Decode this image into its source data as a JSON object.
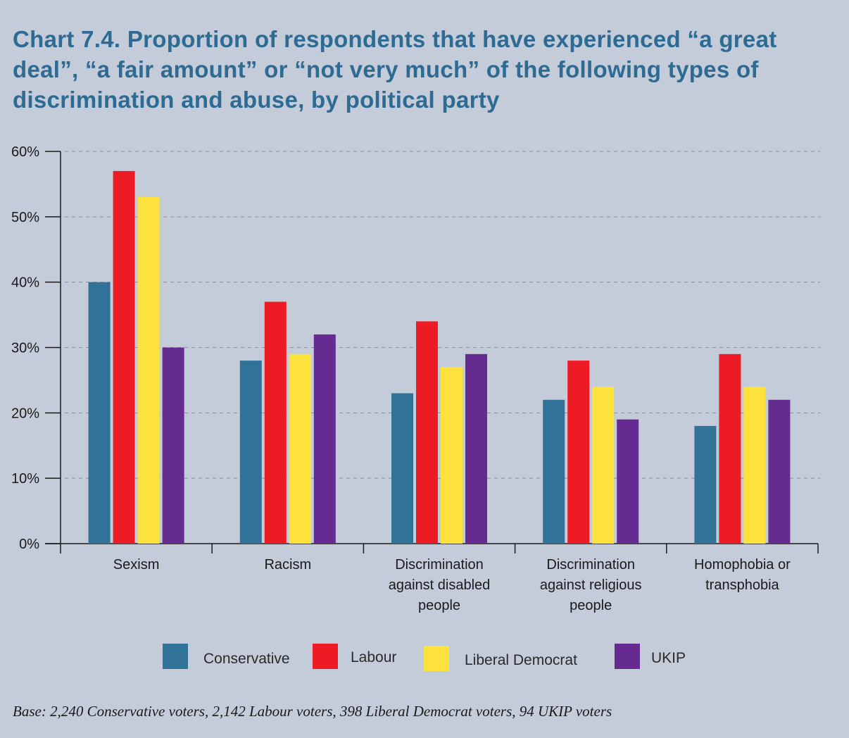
{
  "chart_data": {
    "type": "bar",
    "title": "Chart 7.4. Proportion of respondents that have experienced “a great deal”, “a fair amount” or “not very much” of the following types of discrimination and abuse, by political party",
    "categories": [
      [
        "Sexism"
      ],
      [
        "Racism"
      ],
      [
        "Discrimination",
        "against disabled",
        "people"
      ],
      [
        "Discrimination",
        "against religious",
        "people"
      ],
      [
        "Homophobia or",
        "transphobia"
      ]
    ],
    "series": [
      {
        "name": "Conservative",
        "color": "#317299",
        "values": [
          40,
          28,
          23,
          22,
          18
        ]
      },
      {
        "name": "Labour",
        "color": "#ed1c24",
        "values": [
          57,
          37,
          34,
          28,
          29
        ]
      },
      {
        "name": "Liberal Democrat",
        "color": "#fde23d",
        "values": [
          53,
          29,
          27,
          24,
          24
        ]
      },
      {
        "name": "UKIP",
        "color": "#652b90",
        "values": [
          30,
          32,
          29,
          19,
          22
        ]
      }
    ],
    "ylim": [
      0,
      60
    ],
    "yticks": [
      "0%",
      "10%",
      "20%",
      "30%",
      "40%",
      "50%",
      "60%"
    ],
    "grid": true,
    "legend_position": "bottom"
  },
  "footnote": "Base: 2,240 Conservative voters, 2,142 Labour voters, 398 Liberal Democrat voters, 94 UKIP voters"
}
